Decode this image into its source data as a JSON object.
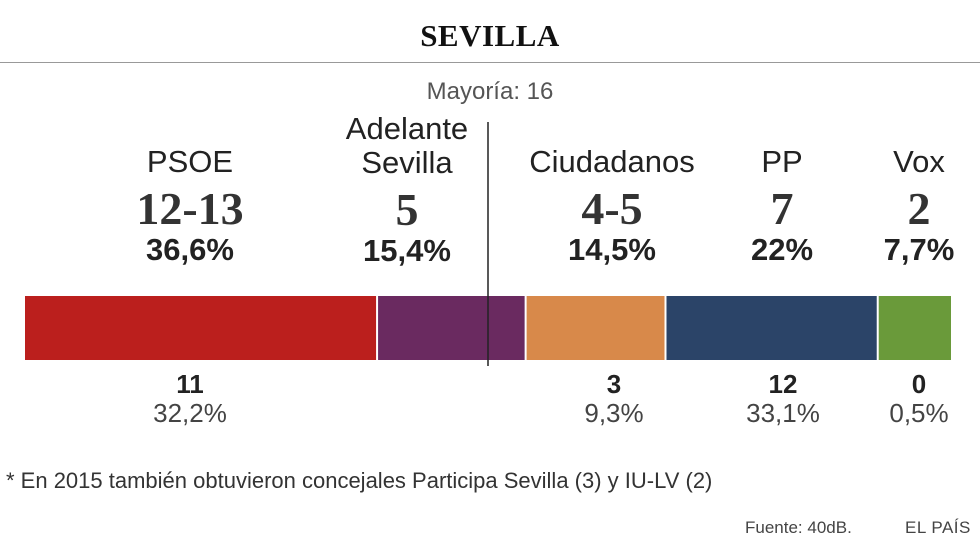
{
  "title": "SEVILLA",
  "majority_label": "Mayoría: 16",
  "footnote": "* En 2015 también obtuvieron concejales Participa Sevilla (3) y IU-LV (2)",
  "source": "Fuente: 40dB.",
  "brand": "EL PAÍS",
  "chart_data": {
    "type": "bar",
    "orientation": "horizontal-stacked",
    "majority_seats": 16,
    "parties": [
      {
        "name_line1": "",
        "name_line2": "PSOE",
        "seats_label": "12-13",
        "percent": 36.6,
        "percent_label": "36,6%",
        "color": "#bb1f1d",
        "prev_seats": "11",
        "prev_percent_label": "32,2%"
      },
      {
        "name_line1": "Adelante",
        "name_line2": "Sevilla",
        "seats_label": "5",
        "percent": 15.4,
        "percent_label": "15,4%",
        "color": "#6a2a60",
        "prev_seats": "",
        "prev_percent_label": ""
      },
      {
        "name_line1": "",
        "name_line2": "Ciudadanos",
        "seats_label": "4-5",
        "percent": 14.5,
        "percent_label": "14,5%",
        "color": "#d8894a",
        "prev_seats": "3",
        "prev_percent_label": "9,3%"
      },
      {
        "name_line1": "",
        "name_line2": "PP",
        "seats_label": "7",
        "percent": 22,
        "percent_label": "22%",
        "color": "#2b4468",
        "prev_seats": "12",
        "prev_percent_label": "33,1%"
      },
      {
        "name_line1": "",
        "name_line2": "Vox",
        "seats_label": "2",
        "percent": 7.7,
        "percent_label": "7,7%",
        "color": "#6a9a3a",
        "prev_seats": "0",
        "prev_percent_label": "0,5%"
      }
    ]
  }
}
